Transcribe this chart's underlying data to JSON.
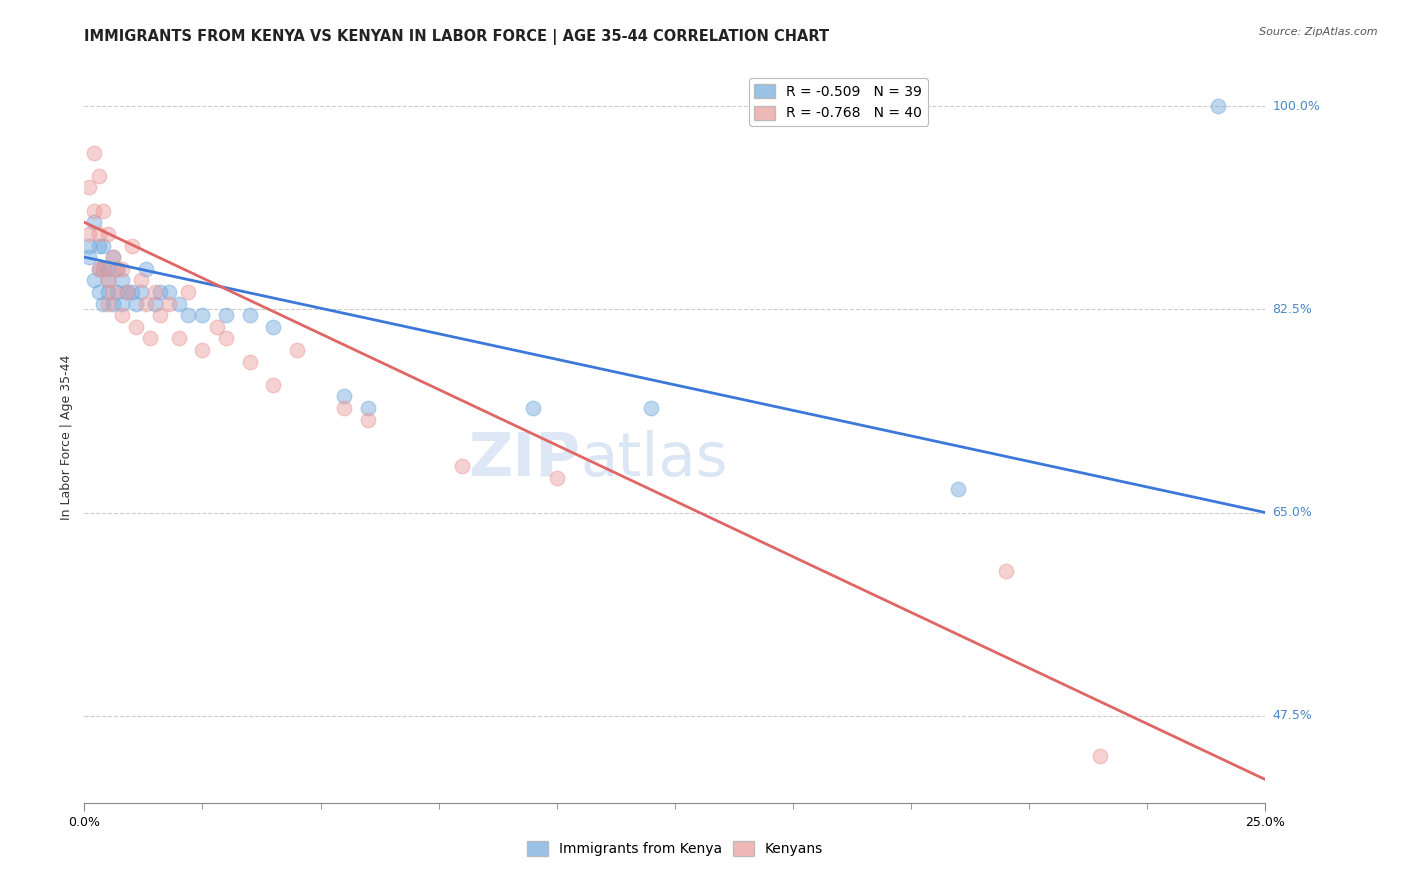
{
  "title": "IMMIGRANTS FROM KENYA VS KENYAN IN LABOR FORCE | AGE 35-44 CORRELATION CHART",
  "source": "Source: ZipAtlas.com",
  "ylabel": "In Labor Force | Age 35-44",
  "xlim": [
    0.0,
    0.25
  ],
  "ylim": [
    0.4,
    1.03
  ],
  "xtick_major": [
    0.0,
    0.25
  ],
  "xtick_minor_step": 0.025,
  "xtick_major_labels": [
    "0.0%",
    "25.0%"
  ],
  "ytick_labeled": [
    1.0,
    0.825,
    0.65,
    0.475
  ],
  "ytick_labeled_str": [
    "100.0%",
    "82.5%",
    "65.0%",
    "47.5%"
  ],
  "ytick_grid": [
    1.0,
    0.825,
    0.65,
    0.475
  ],
  "legend_blue_r": "R = -0.509",
  "legend_blue_n": "N = 39",
  "legend_pink_r": "R = -0.768",
  "legend_pink_n": "N = 40",
  "blue_color": "#6fa8dc",
  "pink_color": "#ea9999",
  "blue_line_color": "#3c78d8",
  "pink_line_color": "#e06666",
  "watermark_zip": "ZIP",
  "watermark_atlas": "atlas",
  "blue_points_x": [
    0.001,
    0.001,
    0.002,
    0.002,
    0.003,
    0.003,
    0.003,
    0.004,
    0.004,
    0.004,
    0.005,
    0.005,
    0.005,
    0.006,
    0.006,
    0.007,
    0.007,
    0.008,
    0.008,
    0.009,
    0.01,
    0.011,
    0.012,
    0.013,
    0.015,
    0.016,
    0.018,
    0.02,
    0.022,
    0.025,
    0.03,
    0.035,
    0.04,
    0.055,
    0.06,
    0.095,
    0.12,
    0.185,
    0.24
  ],
  "blue_points_y": [
    0.88,
    0.87,
    0.9,
    0.85,
    0.88,
    0.86,
    0.84,
    0.88,
    0.86,
    0.83,
    0.86,
    0.85,
    0.84,
    0.87,
    0.83,
    0.86,
    0.84,
    0.85,
    0.83,
    0.84,
    0.84,
    0.83,
    0.84,
    0.86,
    0.83,
    0.84,
    0.84,
    0.83,
    0.82,
    0.82,
    0.82,
    0.82,
    0.81,
    0.75,
    0.74,
    0.74,
    0.74,
    0.67,
    1.0
  ],
  "pink_points_x": [
    0.001,
    0.001,
    0.002,
    0.002,
    0.003,
    0.003,
    0.003,
    0.004,
    0.004,
    0.005,
    0.005,
    0.005,
    0.006,
    0.006,
    0.007,
    0.008,
    0.008,
    0.009,
    0.01,
    0.011,
    0.012,
    0.013,
    0.014,
    0.015,
    0.016,
    0.018,
    0.02,
    0.022,
    0.025,
    0.028,
    0.03,
    0.035,
    0.04,
    0.045,
    0.055,
    0.06,
    0.08,
    0.1,
    0.195,
    0.215
  ],
  "pink_points_y": [
    0.93,
    0.89,
    0.96,
    0.91,
    0.94,
    0.89,
    0.86,
    0.91,
    0.86,
    0.89,
    0.85,
    0.83,
    0.87,
    0.84,
    0.86,
    0.86,
    0.82,
    0.84,
    0.88,
    0.81,
    0.85,
    0.83,
    0.8,
    0.84,
    0.82,
    0.83,
    0.8,
    0.84,
    0.79,
    0.81,
    0.8,
    0.78,
    0.76,
    0.79,
    0.74,
    0.73,
    0.69,
    0.68,
    0.6,
    0.44
  ],
  "blue_line_x0": 0.0,
  "blue_line_y0": 0.87,
  "blue_line_x1": 0.25,
  "blue_line_y1": 0.65,
  "pink_line_x0": 0.0,
  "pink_line_y0": 0.9,
  "pink_line_x1": 0.25,
  "pink_line_y1": 0.42,
  "marker_size": 110,
  "marker_alpha": 0.45,
  "background_color": "#ffffff",
  "grid_color": "#cccccc",
  "title_fontsize": 10.5,
  "axis_label_fontsize": 9,
  "tick_fontsize": 9,
  "legend_fontsize": 10,
  "yaxis_label_color": "#4a86c8",
  "bottom_legend_label1": "Immigrants from Kenya",
  "bottom_legend_label2": "Kenyans"
}
